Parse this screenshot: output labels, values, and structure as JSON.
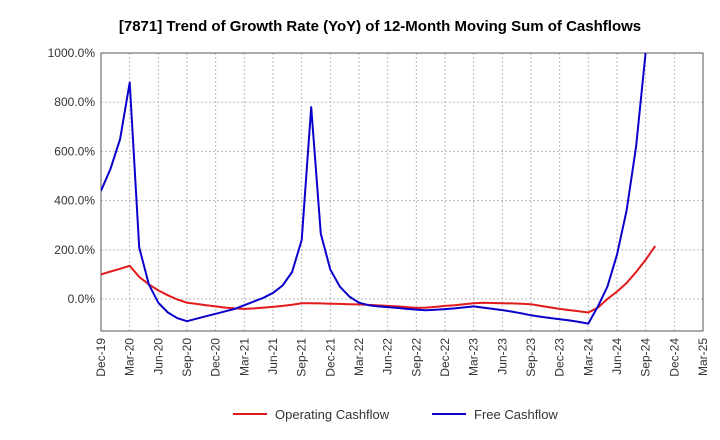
{
  "chart_data": {
    "type": "line",
    "title": "[7871]  Trend of Growth Rate (YoY) of 12-Month Moving Sum of Cashflows",
    "xlabel": "",
    "ylabel": "",
    "ylim": [
      -130,
      1000
    ],
    "yticks": [
      0,
      200,
      400,
      600,
      800,
      1000
    ],
    "ytick_labels": [
      "0.0%",
      "200.0%",
      "400.0%",
      "600.0%",
      "800.0%",
      "1000.0%"
    ],
    "x_categories": [
      "Dec-19",
      "Jan-20",
      "Feb-20",
      "Mar-20",
      "Apr-20",
      "May-20",
      "Jun-20",
      "Jul-20",
      "Aug-20",
      "Sep-20",
      "Oct-20",
      "Nov-20",
      "Dec-20",
      "Jan-21",
      "Feb-21",
      "Mar-21",
      "Apr-21",
      "May-21",
      "Jun-21",
      "Jul-21",
      "Aug-21",
      "Sep-21",
      "Oct-21",
      "Nov-21",
      "Dec-21",
      "Jan-22",
      "Feb-22",
      "Mar-22",
      "Apr-22",
      "May-22",
      "Jun-22",
      "Jul-22",
      "Aug-22",
      "Sep-22",
      "Oct-22",
      "Nov-22",
      "Dec-22",
      "Jan-23",
      "Feb-23",
      "Mar-23",
      "Apr-23",
      "May-23",
      "Jun-23",
      "Jul-23",
      "Aug-23",
      "Sep-23",
      "Oct-23",
      "Nov-23",
      "Dec-23",
      "Jan-24",
      "Feb-24",
      "Mar-24",
      "Apr-24",
      "May-24",
      "Jun-24",
      "Jul-24",
      "Aug-24",
      "Sep-24",
      "Oct-24",
      "Nov-24",
      "Dec-24",
      "Jan-25",
      "Feb-25",
      "Mar-25"
    ],
    "x_tick_labels": [
      "Dec-19",
      "Mar-20",
      "Jun-20",
      "Sep-20",
      "Dec-20",
      "Mar-21",
      "Jun-21",
      "Sep-21",
      "Dec-21",
      "Mar-22",
      "Jun-22",
      "Sep-22",
      "Dec-22",
      "Mar-23",
      "Jun-23",
      "Sep-23",
      "Dec-23",
      "Mar-24",
      "Jun-24",
      "Sep-24",
      "Dec-24",
      "Mar-25"
    ],
    "grid": true,
    "legend_position": "bottom",
    "series": [
      {
        "name": "Operating Cashflow",
        "color": "#e31a1c",
        "values": [
          100,
          112,
          123,
          135,
          90,
          60,
          35,
          15,
          -2,
          -15,
          -20,
          -25,
          -30,
          -35,
          -38,
          -40,
          -38,
          -35,
          -32,
          -28,
          -23,
          -17,
          -17,
          -18,
          -19,
          -20,
          -21,
          -22,
          -24,
          -26,
          -28,
          -30,
          -33,
          -36,
          -35,
          -32,
          -28,
          -25,
          -21,
          -17,
          -15,
          -16,
          -17,
          -18,
          -19,
          -21,
          -28,
          -34,
          -40,
          -45,
          -50,
          -55,
          -35,
          0,
          30,
          65,
          110,
          160,
          215,
          null,
          null,
          null,
          null,
          null
        ]
      },
      {
        "name": "Free Cashflow",
        "color": "#0a00cc",
        "values": [
          440,
          530,
          650,
          880,
          210,
          60,
          -15,
          -55,
          -78,
          -90,
          -80,
          -70,
          -60,
          -50,
          -40,
          -25,
          -10,
          5,
          25,
          55,
          110,
          240,
          780,
          265,
          120,
          50,
          10,
          -15,
          -25,
          -30,
          -33,
          -36,
          -40,
          -43,
          -46,
          -44,
          -41,
          -38,
          -34,
          -30,
          -35,
          -40,
          -45,
          -51,
          -58,
          -66,
          -72,
          -77,
          -82,
          -87,
          -93,
          -100,
          -30,
          50,
          180,
          360,
          620,
          1005,
          null,
          null,
          null,
          null,
          null,
          null
        ]
      }
    ]
  }
}
